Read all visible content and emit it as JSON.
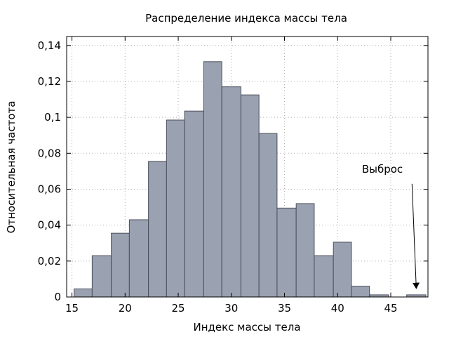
{
  "chart_data": {
    "type": "bar",
    "title": "Распределение индекса массы тела",
    "xlabel": "Индекс массы тела",
    "ylabel": "Относительная частота",
    "xlim": [
      14.5,
      48.5
    ],
    "ylim": [
      0,
      0.145
    ],
    "x_ticks": [
      {
        "value": 15,
        "label": "15"
      },
      {
        "value": 20,
        "label": "20"
      },
      {
        "value": 25,
        "label": "25"
      },
      {
        "value": 30,
        "label": "30"
      },
      {
        "value": 35,
        "label": "35"
      },
      {
        "value": 40,
        "label": "40"
      },
      {
        "value": 45,
        "label": "45"
      }
    ],
    "y_ticks": [
      {
        "value": 0,
        "label": "0"
      },
      {
        "value": 0.02,
        "label": "0,02"
      },
      {
        "value": 0.04,
        "label": "0,04"
      },
      {
        "value": 0.06,
        "label": "0,06"
      },
      {
        "value": 0.08,
        "label": "0,08"
      },
      {
        "value": 0.1,
        "label": "0,1"
      },
      {
        "value": 0.12,
        "label": "0,12"
      },
      {
        "value": 0.14,
        "label": "0,14"
      }
    ],
    "bins": [
      {
        "start": 15.2,
        "end": 16.9,
        "value": 0.0045
      },
      {
        "start": 16.9,
        "end": 18.7,
        "value": 0.023
      },
      {
        "start": 18.7,
        "end": 20.4,
        "value": 0.0355
      },
      {
        "start": 20.4,
        "end": 22.2,
        "value": 0.043
      },
      {
        "start": 22.2,
        "end": 23.9,
        "value": 0.0755
      },
      {
        "start": 23.9,
        "end": 25.6,
        "value": 0.0985
      },
      {
        "start": 25.6,
        "end": 27.4,
        "value": 0.1035
      },
      {
        "start": 27.4,
        "end": 29.1,
        "value": 0.131
      },
      {
        "start": 29.1,
        "end": 30.9,
        "value": 0.117
      },
      {
        "start": 30.9,
        "end": 32.6,
        "value": 0.1125
      },
      {
        "start": 32.6,
        "end": 34.3,
        "value": 0.091
      },
      {
        "start": 34.3,
        "end": 36.1,
        "value": 0.0495
      },
      {
        "start": 36.1,
        "end": 37.8,
        "value": 0.052
      },
      {
        "start": 37.8,
        "end": 39.6,
        "value": 0.023
      },
      {
        "start": 39.6,
        "end": 41.3,
        "value": 0.0305
      },
      {
        "start": 41.3,
        "end": 43.0,
        "value": 0.006
      },
      {
        "start": 43.0,
        "end": 44.8,
        "value": 0.0012
      },
      {
        "start": 46.5,
        "end": 48.3,
        "value": 0.0012
      }
    ],
    "bar_color": "#9aa1b0",
    "bar_edge_color": "#4a4f5a",
    "grid": true,
    "annotation": {
      "text": "Выброс",
      "arrow_from": {
        "x": 47.0,
        "y": 0.063
      },
      "arrow_to": {
        "x": 47.4,
        "y": 0.0048
      }
    }
  }
}
